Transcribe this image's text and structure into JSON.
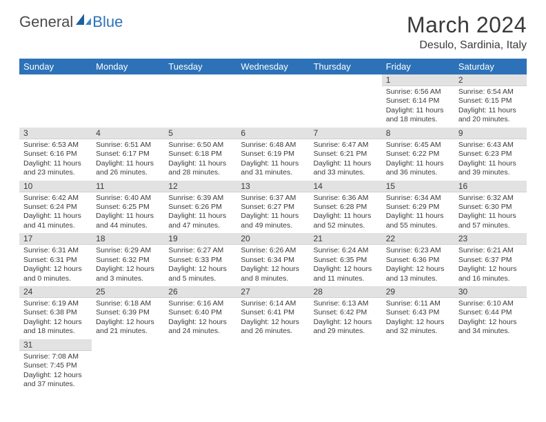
{
  "header": {
    "logo_part1": "General",
    "logo_part2": "Blue",
    "month_title": "March 2024",
    "location": "Desulo, Sardinia, Italy"
  },
  "style": {
    "header_bg": "#2d72b8",
    "header_text": "#ffffff",
    "daynum_bg": "#e2e2e2",
    "cell_border": "#2d72b8",
    "text_color": "#3a3a3a",
    "page_bg": "#ffffff",
    "th_fontsize": 13,
    "body_fontsize": 10.5,
    "title_fontsize": 32,
    "location_fontsize": 16
  },
  "weekdays": [
    "Sunday",
    "Monday",
    "Tuesday",
    "Wednesday",
    "Thursday",
    "Friday",
    "Saturday"
  ],
  "weeks": [
    [
      null,
      null,
      null,
      null,
      null,
      {
        "n": "1",
        "sunrise": "6:56 AM",
        "sunset": "6:14 PM",
        "dl_h": 11,
        "dl_m": 18
      },
      {
        "n": "2",
        "sunrise": "6:54 AM",
        "sunset": "6:15 PM",
        "dl_h": 11,
        "dl_m": 20
      }
    ],
    [
      {
        "n": "3",
        "sunrise": "6:53 AM",
        "sunset": "6:16 PM",
        "dl_h": 11,
        "dl_m": 23
      },
      {
        "n": "4",
        "sunrise": "6:51 AM",
        "sunset": "6:17 PM",
        "dl_h": 11,
        "dl_m": 26
      },
      {
        "n": "5",
        "sunrise": "6:50 AM",
        "sunset": "6:18 PM",
        "dl_h": 11,
        "dl_m": 28
      },
      {
        "n": "6",
        "sunrise": "6:48 AM",
        "sunset": "6:19 PM",
        "dl_h": 11,
        "dl_m": 31
      },
      {
        "n": "7",
        "sunrise": "6:47 AM",
        "sunset": "6:21 PM",
        "dl_h": 11,
        "dl_m": 33
      },
      {
        "n": "8",
        "sunrise": "6:45 AM",
        "sunset": "6:22 PM",
        "dl_h": 11,
        "dl_m": 36
      },
      {
        "n": "9",
        "sunrise": "6:43 AM",
        "sunset": "6:23 PM",
        "dl_h": 11,
        "dl_m": 39
      }
    ],
    [
      {
        "n": "10",
        "sunrise": "6:42 AM",
        "sunset": "6:24 PM",
        "dl_h": 11,
        "dl_m": 41
      },
      {
        "n": "11",
        "sunrise": "6:40 AM",
        "sunset": "6:25 PM",
        "dl_h": 11,
        "dl_m": 44
      },
      {
        "n": "12",
        "sunrise": "6:39 AM",
        "sunset": "6:26 PM",
        "dl_h": 11,
        "dl_m": 47
      },
      {
        "n": "13",
        "sunrise": "6:37 AM",
        "sunset": "6:27 PM",
        "dl_h": 11,
        "dl_m": 49
      },
      {
        "n": "14",
        "sunrise": "6:36 AM",
        "sunset": "6:28 PM",
        "dl_h": 11,
        "dl_m": 52
      },
      {
        "n": "15",
        "sunrise": "6:34 AM",
        "sunset": "6:29 PM",
        "dl_h": 11,
        "dl_m": 55
      },
      {
        "n": "16",
        "sunrise": "6:32 AM",
        "sunset": "6:30 PM",
        "dl_h": 11,
        "dl_m": 57
      }
    ],
    [
      {
        "n": "17",
        "sunrise": "6:31 AM",
        "sunset": "6:31 PM",
        "dl_h": 12,
        "dl_m": 0
      },
      {
        "n": "18",
        "sunrise": "6:29 AM",
        "sunset": "6:32 PM",
        "dl_h": 12,
        "dl_m": 3
      },
      {
        "n": "19",
        "sunrise": "6:27 AM",
        "sunset": "6:33 PM",
        "dl_h": 12,
        "dl_m": 5
      },
      {
        "n": "20",
        "sunrise": "6:26 AM",
        "sunset": "6:34 PM",
        "dl_h": 12,
        "dl_m": 8
      },
      {
        "n": "21",
        "sunrise": "6:24 AM",
        "sunset": "6:35 PM",
        "dl_h": 12,
        "dl_m": 11
      },
      {
        "n": "22",
        "sunrise": "6:23 AM",
        "sunset": "6:36 PM",
        "dl_h": 12,
        "dl_m": 13
      },
      {
        "n": "23",
        "sunrise": "6:21 AM",
        "sunset": "6:37 PM",
        "dl_h": 12,
        "dl_m": 16
      }
    ],
    [
      {
        "n": "24",
        "sunrise": "6:19 AM",
        "sunset": "6:38 PM",
        "dl_h": 12,
        "dl_m": 18
      },
      {
        "n": "25",
        "sunrise": "6:18 AM",
        "sunset": "6:39 PM",
        "dl_h": 12,
        "dl_m": 21
      },
      {
        "n": "26",
        "sunrise": "6:16 AM",
        "sunset": "6:40 PM",
        "dl_h": 12,
        "dl_m": 24
      },
      {
        "n": "27",
        "sunrise": "6:14 AM",
        "sunset": "6:41 PM",
        "dl_h": 12,
        "dl_m": 26
      },
      {
        "n": "28",
        "sunrise": "6:13 AM",
        "sunset": "6:42 PM",
        "dl_h": 12,
        "dl_m": 29
      },
      {
        "n": "29",
        "sunrise": "6:11 AM",
        "sunset": "6:43 PM",
        "dl_h": 12,
        "dl_m": 32
      },
      {
        "n": "30",
        "sunrise": "6:10 AM",
        "sunset": "6:44 PM",
        "dl_h": 12,
        "dl_m": 34
      }
    ],
    [
      {
        "n": "31",
        "sunrise": "7:08 AM",
        "sunset": "7:45 PM",
        "dl_h": 12,
        "dl_m": 37
      },
      null,
      null,
      null,
      null,
      null,
      null
    ]
  ],
  "labels": {
    "sunrise": "Sunrise:",
    "sunset": "Sunset:",
    "daylight": "Daylight:",
    "hours_word": "hours",
    "and_word": "and",
    "minutes_word": "minutes."
  }
}
